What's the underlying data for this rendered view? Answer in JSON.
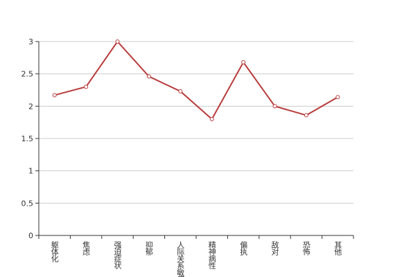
{
  "chart_data": {
    "type": "line",
    "categories": [
      "躯体化",
      "焦虑",
      "强迫症状",
      "抑郁",
      "人际关系敏感",
      "精神病性",
      "偏执",
      "敌对",
      "恐怖",
      "其他"
    ],
    "series": [
      {
        "color": "#b83b3b",
        "values": [
          2.17,
          2.3,
          3.0,
          2.46,
          2.23,
          1.8,
          2.68,
          2.0,
          1.86,
          2.14
        ]
      }
    ],
    "ylim": [
      0,
      3
    ],
    "yticks": [
      0,
      0.5,
      1,
      1.5,
      2,
      2.5,
      3
    ],
    "grid": true
  }
}
